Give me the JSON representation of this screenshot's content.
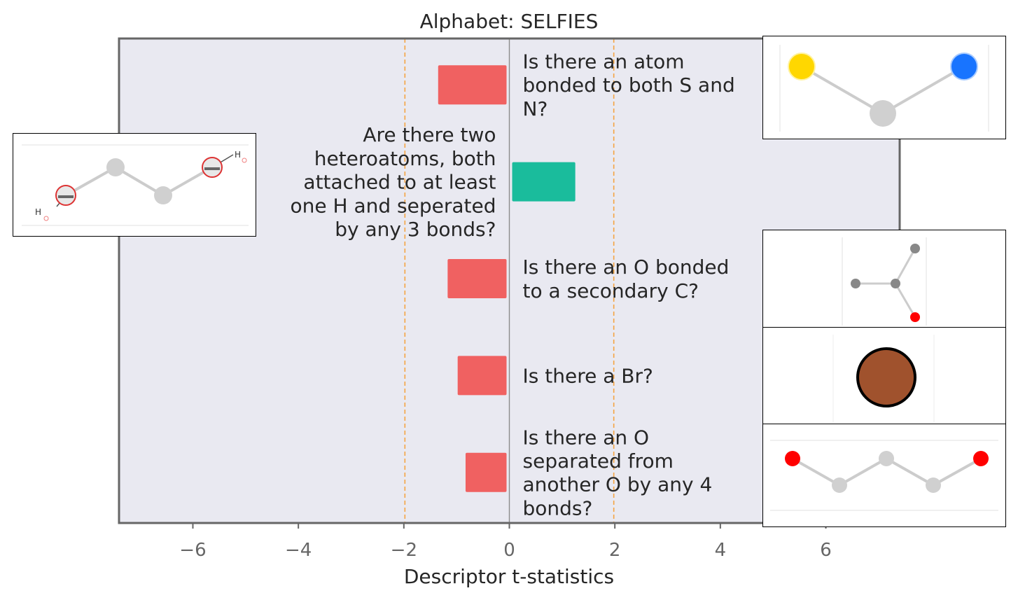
{
  "chart_data": {
    "type": "bar",
    "orientation": "horizontal",
    "title": "Alphabet: SELFIES",
    "xlabel": "Descriptor t-statistics",
    "ylabel": "",
    "xlim": [
      -7.4,
      7.4
    ],
    "xticks": [
      -6,
      -4,
      -2,
      0,
      2,
      4,
      6
    ],
    "xtick_labels": [
      "−6",
      "−4",
      "−2",
      "0",
      "2",
      "4",
      "6"
    ],
    "significance_lines": [
      -1.98,
      1.98
    ],
    "grid": false,
    "background": "#e9e9f1",
    "categories": [
      "Is there an atom bonded to both S and N?",
      "Are there two heteroatoms, both attached to at least one H and seperated by any 3 bonds?",
      "Is there an O bonded to a secondary C?",
      "Is there a Br?",
      "Is there an O separated from another O by any 4 bonds?"
    ],
    "label_lines": [
      [
        "Is there an atom",
        "bonded to both S and",
        "N?"
      ],
      [
        "Are there two",
        "heteroatoms, both",
        "attached to at least",
        "one H and seperated",
        "by any 3 bonds?"
      ],
      [
        "Is there an O bonded",
        "to a secondary C?"
      ],
      [
        "Is there a Br?"
      ],
      [
        "Is there an O",
        "separated from",
        "another O by any 4",
        "bonds?"
      ]
    ],
    "values": [
      -1.35,
      1.25,
      -1.17,
      -0.98,
      -0.83
    ],
    "colors": {
      "negative": "#f06161",
      "positive": "#1abc9c",
      "threshold_line": "#f5a442",
      "zero_line": "#8c8c8c",
      "axis_frame": "#666666"
    }
  }
}
